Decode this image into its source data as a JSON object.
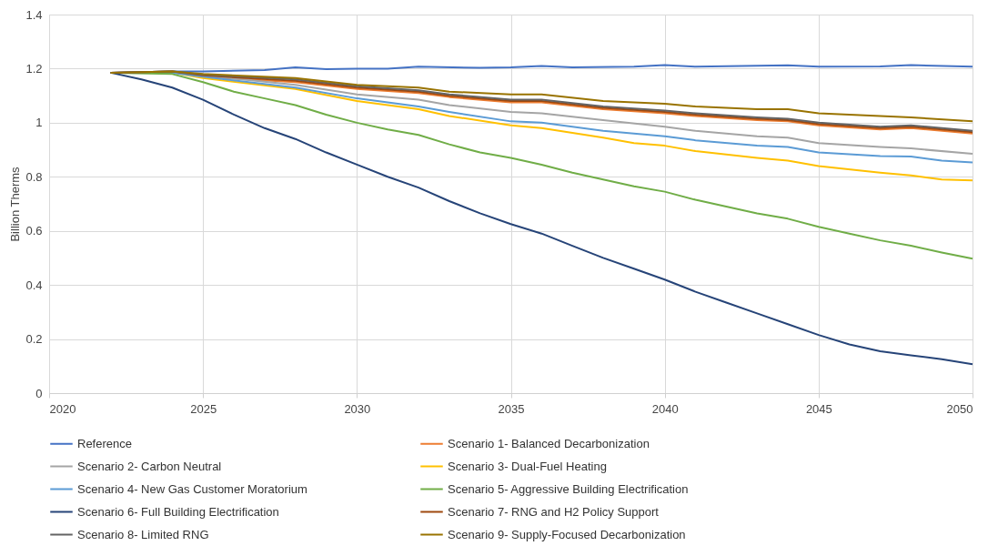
{
  "chart_data": {
    "type": "line",
    "ylabel": "Billion Therms",
    "xlim": [
      2020,
      2050
    ],
    "xticks": [
      2020,
      2025,
      2030,
      2035,
      2040,
      2045,
      2050
    ],
    "ylim": [
      0,
      1.4
    ],
    "yticks": [
      0,
      0.2,
      0.4,
      0.6,
      0.8,
      1,
      1.2,
      1.4
    ],
    "grid": true,
    "legend": "bottom",
    "line_style": "solid",
    "series": [
      {
        "name": "Reference",
        "color": "#4472c4",
        "x": [
          2022,
          2024,
          2025,
          2027,
          2028,
          2029,
          2030,
          2031,
          2032,
          2034,
          2035,
          2036,
          2037,
          2039,
          2040,
          2041,
          2044,
          2045,
          2047,
          2048,
          2050
        ],
        "values": [
          1.185,
          1.19,
          1.19,
          1.195,
          1.205,
          1.198,
          1.2,
          1.2,
          1.207,
          1.203,
          1.205,
          1.21,
          1.205,
          1.207,
          1.213,
          1.207,
          1.212,
          1.207,
          1.208,
          1.213,
          1.207
        ]
      },
      {
        "name": "Scenario 1- Balanced Decarbonization",
        "color": "#ed7d31",
        "x": [
          2025,
          2028,
          2030,
          2032,
          2033,
          2035,
          2036,
          2038,
          2040,
          2041,
          2043,
          2044,
          2045,
          2047,
          2048,
          2050
        ],
        "values": [
          1.17,
          1.15,
          1.125,
          1.11,
          1.095,
          1.075,
          1.075,
          1.05,
          1.035,
          1.025,
          1.01,
          1.005,
          0.99,
          0.975,
          0.98,
          0.96
        ]
      },
      {
        "name": "Scenario 2- Carbon Neutral",
        "color": "#a5a5a5",
        "x": [
          2022,
          2024,
          2025,
          2028,
          2030,
          2032,
          2033,
          2035,
          2036,
          2038,
          2040,
          2041,
          2043,
          2044,
          2045,
          2047,
          2048,
          2050
        ],
        "values": [
          1.185,
          1.19,
          1.175,
          1.14,
          1.105,
          1.085,
          1.065,
          1.04,
          1.035,
          1.01,
          0.985,
          0.97,
          0.95,
          0.945,
          0.925,
          0.91,
          0.905,
          0.885
        ]
      },
      {
        "name": "Scenario 3- Dual-Fuel Heating",
        "color": "#ffc000",
        "x": [
          2022,
          2024,
          2025,
          2028,
          2030,
          2032,
          2033,
          2035,
          2036,
          2038,
          2039,
          2040,
          2041,
          2043,
          2044,
          2045,
          2047,
          2048,
          2049,
          2050
        ],
        "values": [
          1.185,
          1.185,
          1.165,
          1.125,
          1.08,
          1.05,
          1.025,
          0.99,
          0.98,
          0.945,
          0.925,
          0.915,
          0.895,
          0.87,
          0.86,
          0.84,
          0.815,
          0.805,
          0.79,
          0.787
        ]
      },
      {
        "name": "Scenario 4- New Gas Customer Moratorium",
        "color": "#5b9bd5",
        "x": [
          2022,
          2024,
          2025,
          2028,
          2030,
          2032,
          2033,
          2035,
          2036,
          2038,
          2040,
          2041,
          2043,
          2044,
          2045,
          2047,
          2048,
          2049,
          2050
        ],
        "values": [
          1.185,
          1.185,
          1.17,
          1.13,
          1.09,
          1.06,
          1.04,
          1.005,
          1.0,
          0.97,
          0.95,
          0.935,
          0.915,
          0.91,
          0.89,
          0.877,
          0.875,
          0.86,
          0.853
        ]
      },
      {
        "name": "Scenario 5- Aggressive Building Electrification",
        "color": "#70ad47",
        "x": [
          2022,
          2024,
          2025,
          2026,
          2027,
          2028,
          2029,
          2030,
          2031,
          2032,
          2033,
          2034,
          2035,
          2036,
          2037,
          2038,
          2039,
          2040,
          2041,
          2042,
          2043,
          2044,
          2045,
          2046,
          2047,
          2048,
          2049,
          2050
        ],
        "values": [
          1.185,
          1.18,
          1.15,
          1.115,
          1.09,
          1.065,
          1.03,
          1.0,
          0.975,
          0.955,
          0.92,
          0.89,
          0.87,
          0.845,
          0.815,
          0.79,
          0.765,
          0.745,
          0.715,
          0.69,
          0.665,
          0.645,
          0.615,
          0.59,
          0.565,
          0.545,
          0.52,
          0.497
        ]
      },
      {
        "name": "Scenario 6- Full Building Electrification",
        "color": "#264478",
        "x": [
          2022,
          2023,
          2024,
          2025,
          2026,
          2027,
          2028,
          2029,
          2030,
          2031,
          2032,
          2033,
          2034,
          2035,
          2036,
          2037,
          2038,
          2039,
          2040,
          2041,
          2042,
          2043,
          2044,
          2045,
          2046,
          2047,
          2048,
          2049,
          2050
        ],
        "values": [
          1.185,
          1.16,
          1.13,
          1.085,
          1.03,
          0.98,
          0.94,
          0.89,
          0.845,
          0.8,
          0.76,
          0.71,
          0.665,
          0.625,
          0.59,
          0.545,
          0.5,
          0.46,
          0.42,
          0.375,
          0.335,
          0.295,
          0.255,
          0.215,
          0.18,
          0.155,
          0.14,
          0.125,
          0.107
        ]
      },
      {
        "name": "Scenario 7- RNG and H2 Policy Support",
        "color": "#9e480e",
        "x": [
          2022,
          2024,
          2025,
          2028,
          2030,
          2032,
          2033,
          2035,
          2036,
          2038,
          2040,
          2041,
          2043,
          2044,
          2045,
          2047,
          2048,
          2050
        ],
        "values": [
          1.185,
          1.19,
          1.175,
          1.155,
          1.13,
          1.115,
          1.1,
          1.08,
          1.08,
          1.055,
          1.04,
          1.03,
          1.015,
          1.01,
          0.995,
          0.98,
          0.985,
          0.965
        ]
      },
      {
        "name": "Scenario 8- Limited RNG",
        "color": "#636363",
        "x": [
          2022,
          2024,
          2025,
          2028,
          2030,
          2032,
          2033,
          2035,
          2036,
          2038,
          2040,
          2041,
          2043,
          2044,
          2045,
          2047,
          2048,
          2050
        ],
        "values": [
          1.185,
          1.19,
          1.178,
          1.16,
          1.135,
          1.12,
          1.105,
          1.085,
          1.085,
          1.06,
          1.045,
          1.035,
          1.02,
          1.015,
          1.0,
          0.985,
          0.99,
          0.97
        ]
      },
      {
        "name": "Scenario 9- Supply-Focused Decarbonization",
        "color": "#997300",
        "x": [
          2022,
          2024,
          2025,
          2028,
          2030,
          2032,
          2033,
          2035,
          2036,
          2038,
          2040,
          2041,
          2043,
          2044,
          2045,
          2047,
          2048,
          2050
        ],
        "values": [
          1.185,
          1.19,
          1.18,
          1.165,
          1.14,
          1.13,
          1.115,
          1.105,
          1.105,
          1.08,
          1.07,
          1.06,
          1.05,
          1.05,
          1.035,
          1.025,
          1.02,
          1.005
        ]
      }
    ]
  }
}
